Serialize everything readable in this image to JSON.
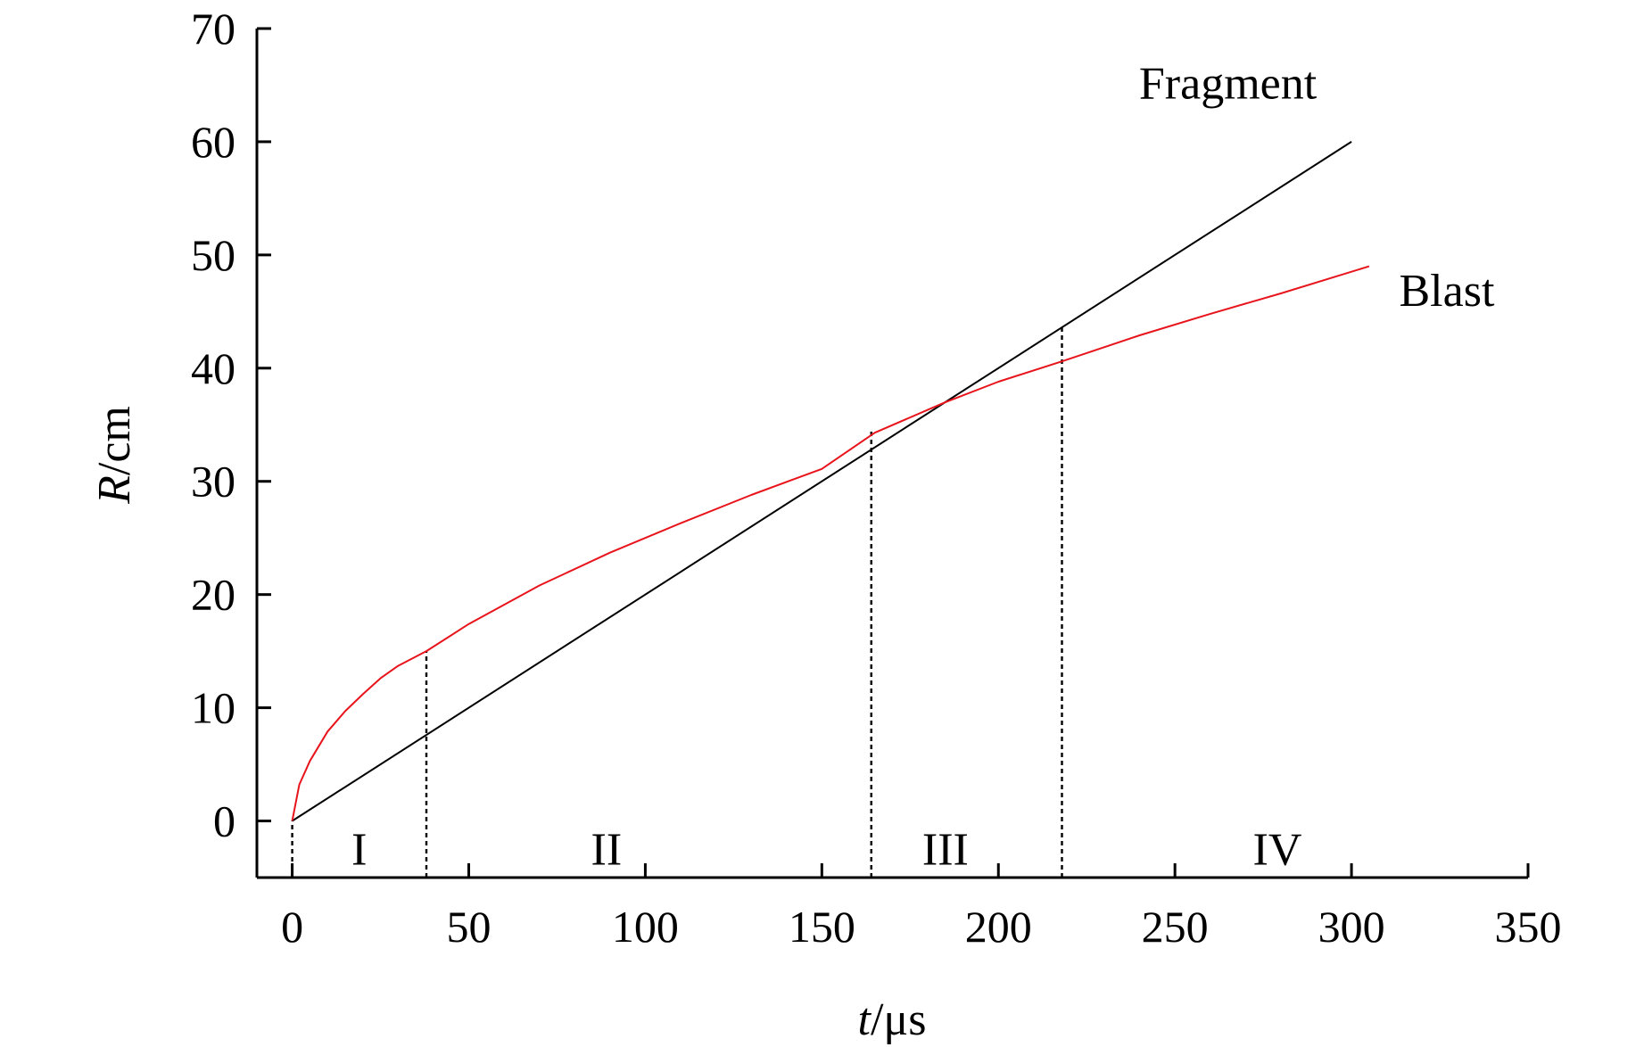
{
  "chart_data": {
    "type": "line",
    "title": "",
    "xlabel_var": "t",
    "xlabel_unit": "/μs",
    "ylabel_var": "R",
    "ylabel_unit": "/cm",
    "xlim": [
      -10,
      350
    ],
    "ylim": [
      -5,
      70
    ],
    "xticks": [
      0,
      50,
      100,
      150,
      200,
      250,
      300,
      350
    ],
    "yticks": [
      0,
      10,
      20,
      30,
      40,
      50,
      60,
      70
    ],
    "xtick_labels": [
      "0",
      "50",
      "100",
      "150",
      "200",
      "250",
      "300",
      "350"
    ],
    "ytick_labels": [
      "0",
      "10",
      "20",
      "30",
      "40",
      "50",
      "60",
      "70"
    ],
    "grid": false,
    "series": [
      {
        "name": "Fragment",
        "color": "#000000",
        "x": [
          0,
          300
        ],
        "y": [
          0,
          60
        ]
      },
      {
        "name": "Blast",
        "color": "#e8141c",
        "x": [
          0,
          2,
          5,
          10,
          15,
          20,
          25,
          30,
          38,
          50,
          70,
          90,
          110,
          130,
          150,
          165,
          185,
          200,
          218,
          240,
          260,
          280,
          305
        ],
        "y": [
          0,
          3.2,
          5.3,
          7.9,
          9.7,
          11.2,
          12.6,
          13.7,
          15.0,
          17.4,
          20.8,
          23.7,
          26.3,
          28.8,
          31.1,
          34.3,
          37.0,
          38.8,
          40.6,
          42.9,
          44.8,
          46.6,
          49.0
        ]
      }
    ],
    "dividers": [
      {
        "x": 0,
        "y_top": 0
      },
      {
        "x": 38,
        "y_top": 15.0
      },
      {
        "x": 164,
        "y_top": 34.6
      },
      {
        "x": 218,
        "y_top": 43.6
      }
    ],
    "regions": [
      {
        "label": "I",
        "x": 19
      },
      {
        "label": "II",
        "x": 89
      },
      {
        "label": "III",
        "x": 185
      },
      {
        "label": "IV",
        "x": 279
      }
    ],
    "region_label_y": -1.5,
    "series_label_anchors": [
      {
        "name": "Fragment",
        "x": 265,
        "y": 63.8
      },
      {
        "name": "Blast",
        "x": 327,
        "y": 45.5
      }
    ]
  }
}
